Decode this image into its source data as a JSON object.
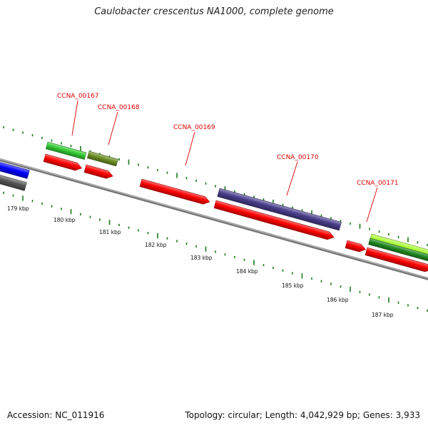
{
  "title": "Caulobacter crescentus NA1000, complete genome",
  "footer": {
    "accession": "Accession: NC_011916",
    "summary": "Topology: circular; Length: 4,042,929 bp; Genes: 3,933"
  },
  "gene_labels": [
    "CCNA_00167",
    "CCNA_00168",
    "CCNA_00169",
    "CCNA_00170",
    "CCNA_00171"
  ],
  "kbp_labels": [
    "179 kbp",
    "180 kbp",
    "181 kbp",
    "182 kbp",
    "183 kbp",
    "184 kbp",
    "185 kbp",
    "186 kbp",
    "187 kbp"
  ],
  "colors": {
    "cds_red": "#ff0000",
    "green": "#33cc33",
    "olive": "#6b8e23",
    "slate": "#483d8b",
    "blue": "#0000ff",
    "gray": "#555555",
    "lime": "#aaff33",
    "dark_green": "#228b22",
    "backbone": "#888888",
    "ruler": "#1a7a1a",
    "label": "#e00000"
  }
}
